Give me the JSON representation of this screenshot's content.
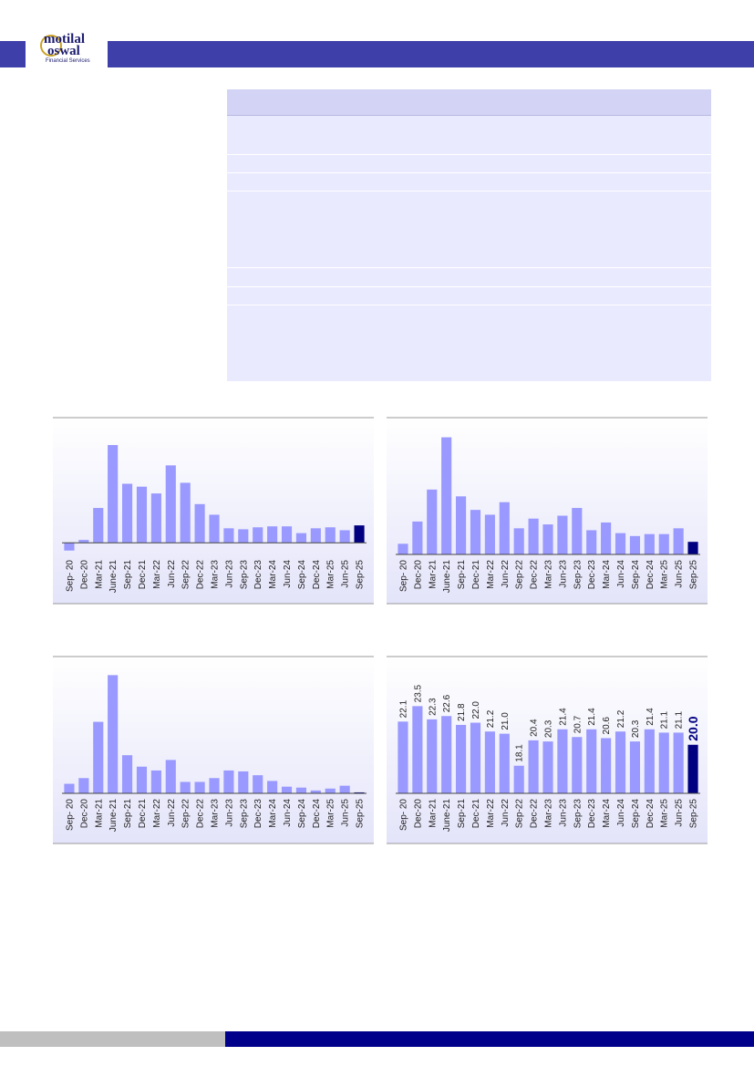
{
  "header": {
    "brand_line1": "motilal",
    "brand_line2": "oswal",
    "tagline": "Financial Services"
  },
  "chart_data": [
    {
      "type": "bar",
      "color": "#9999ff",
      "highlight_color": "#000080",
      "categories": [
        "Sep- 20",
        "Dec-20",
        "Mar-21",
        "June-21",
        "Sep-21",
        "Dec-21",
        "Mar-22",
        "Jun-22",
        "Sep-22",
        "Dec-22",
        "Mar-23",
        "Jun-23",
        "Sep-23",
        "Dec-23",
        "Mar-24",
        "Jun-24",
        "Sep-24",
        "Dec-24",
        "Mar-25",
        "Jun-25",
        "Sep-25"
      ],
      "values": [
        -8,
        3,
        36,
        101,
        61,
        58,
        51,
        80,
        62,
        40,
        29,
        15,
        14,
        16,
        17,
        17,
        10,
        15,
        16,
        13,
        18
      ],
      "ylim": [
        -12,
        118
      ]
    },
    {
      "type": "bar",
      "color": "#9999ff",
      "highlight_color": "#000080",
      "categories": [
        "Sep- 20",
        "Dec-20",
        "Mar-21",
        "June-21",
        "Sep-21",
        "Dec-21",
        "Mar-22",
        "Jun-22",
        "Sep-22",
        "Dec-22",
        "Mar-23",
        "Jun-23",
        "Sep-23",
        "Dec-23",
        "Mar-24",
        "Jun-24",
        "Sep-24",
        "Dec-24",
        "Mar-25",
        "Jun-25",
        "Sep-25"
      ],
      "values": [
        11,
        34,
        67,
        121,
        60,
        46,
        41,
        54,
        27,
        37,
        31,
        40,
        48,
        25,
        33,
        22,
        19,
        21,
        21,
        27,
        13
      ],
      "ylim": [
        0,
        130
      ]
    },
    {
      "type": "bar",
      "color": "#9999ff",
      "highlight_color": "#000080",
      "categories": [
        "Sep- 20",
        "Dec-20",
        "Mar-21",
        "June-21",
        "Sep-21",
        "Dec-21",
        "Mar-22",
        "Jun-22",
        "Sep-22",
        "Dec-22",
        "Mar-23",
        "Jun-23",
        "Sep-23",
        "Dec-23",
        "Mar-24",
        "Jun-24",
        "Sep-24",
        "Dec-24",
        "Mar-25",
        "Jun-25",
        "Sep-25"
      ],
      "values": [
        10,
        16,
        75,
        124,
        40,
        28,
        24,
        35,
        12,
        12,
        16,
        24,
        23,
        19,
        13,
        7,
        6,
        3,
        5,
        8,
        1
      ],
      "ylim": [
        0,
        132
      ]
    },
    {
      "type": "bar",
      "color": "#9999ff",
      "highlight_color": "#000080",
      "categories": [
        "Sep- 20",
        "Dec-20",
        "Mar-21",
        "June-21",
        "Sep-21",
        "Dec-21",
        "Mar-22",
        "Jun-22",
        "Sep-22",
        "Dec-22",
        "Mar-23",
        "Jun-23",
        "Sep-23",
        "Dec-23",
        "Mar-24",
        "Jun-24",
        "Sep-24",
        "Dec-24",
        "Mar-25",
        "Jun-25",
        "Sep-25"
      ],
      "values": [
        22.1,
        23.5,
        22.3,
        22.6,
        21.8,
        22.0,
        21.2,
        21.0,
        18.1,
        20.4,
        20.3,
        21.4,
        20.7,
        21.4,
        20.6,
        21.2,
        20.3,
        21.4,
        21.1,
        21.1,
        20.0
      ],
      "value_labels": [
        "22.1",
        "23.5",
        "22.3",
        "22.6",
        "21.8",
        "22.0",
        "21.2",
        "21.0",
        "18.1",
        "20.4",
        "20.3",
        "21.4",
        "20.7",
        "21.4",
        "20.6",
        "21.2",
        "20.3",
        "21.4",
        "21.1",
        "21.1",
        "20.0"
      ],
      "ylim": [
        15.6,
        27
      ]
    }
  ]
}
